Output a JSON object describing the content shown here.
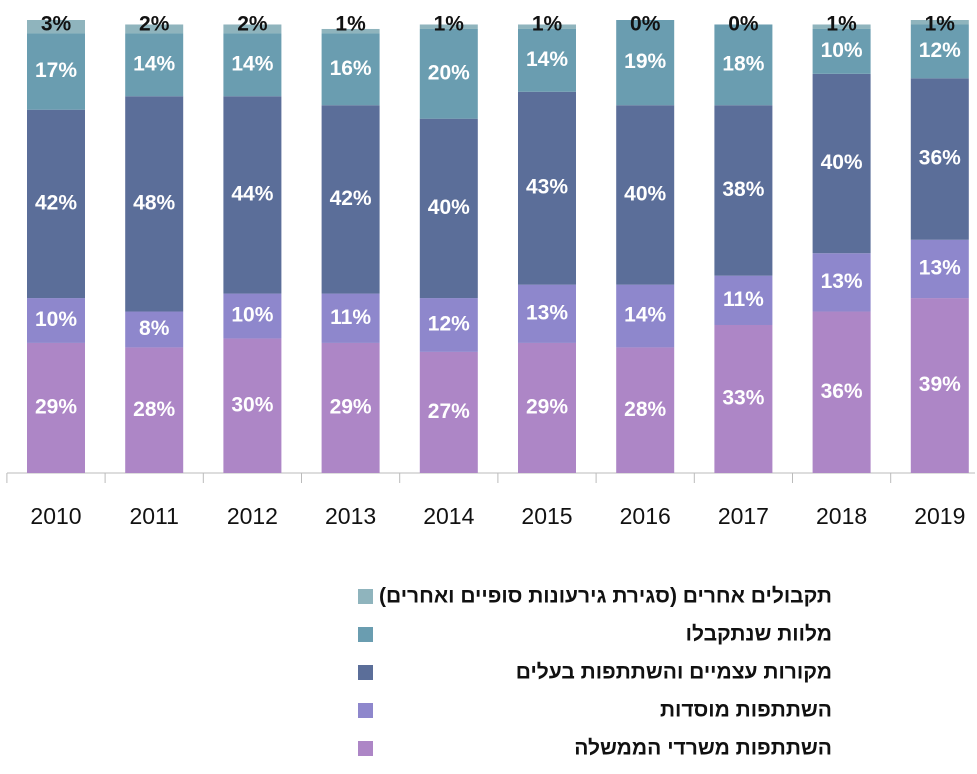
{
  "chart_data": {
    "type": "stacked_bar",
    "categories": [
      "2010",
      "2011",
      "2012",
      "2013",
      "2014",
      "2015",
      "2016",
      "2017",
      "2018",
      "2019"
    ],
    "ylim": [
      0,
      101
    ],
    "series": [
      {
        "name": "השתתפות משרדי הממשלה",
        "color": "#ad86c6",
        "values": [
          29,
          28,
          30,
          29,
          27,
          29,
          28,
          33,
          36,
          39
        ],
        "value_labels": [
          "29%",
          "28%",
          "30%",
          "29%",
          "27%",
          "29%",
          "28%",
          "33%",
          "36%",
          "39%"
        ]
      },
      {
        "name": "השתתפות מוסדות",
        "color": "#8e87cc",
        "values": [
          10,
          8,
          10,
          11,
          12,
          13,
          14,
          11,
          13,
          13
        ],
        "value_labels": [
          "10%",
          "8%",
          "10%",
          "11%",
          "12%",
          "13%",
          "14%",
          "11%",
          "13%",
          "13%"
        ]
      },
      {
        "name": "מקורות עצמיים והשתתפות בעלים",
        "color": "#5b6e99",
        "values": [
          42,
          48,
          44,
          42,
          40,
          43,
          40,
          38,
          40,
          36
        ],
        "value_labels": [
          "42%",
          "48%",
          "44%",
          "42%",
          "40%",
          "43%",
          "40%",
          "38%",
          "40%",
          "36%"
        ]
      },
      {
        "name": "מלוות שנתקבלו",
        "color": "#6a9db0",
        "values": [
          17,
          14,
          14,
          16,
          20,
          14,
          19,
          18,
          10,
          12
        ],
        "value_labels": [
          "17%",
          "14%",
          "14%",
          "16%",
          "20%",
          "14%",
          "19%",
          "18%",
          "10%",
          "12%"
        ]
      },
      {
        "name": "תקבולים אחרים (סגירת גירעונות סופיים ואחרים)",
        "color": "#8fb4bd",
        "values": [
          3,
          2,
          2,
          1,
          1,
          1,
          0,
          0,
          1,
          1
        ],
        "value_labels": [
          "3%",
          "2%",
          "2%",
          "1%",
          "1%",
          "1%",
          "0%",
          "0%",
          "1%",
          "1%"
        ]
      }
    ]
  }
}
